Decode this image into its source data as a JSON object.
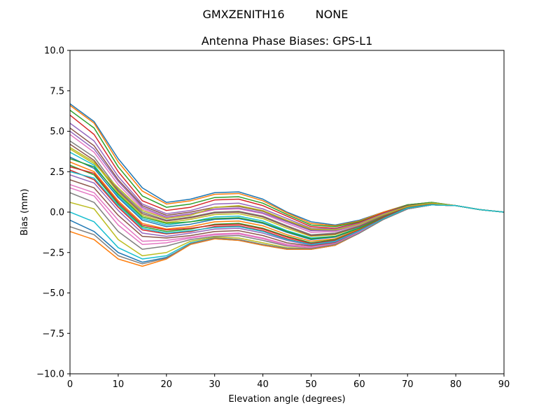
{
  "figure": {
    "suptitle_left": "GMXZENITH16",
    "suptitle_right": "NONE"
  },
  "chart_data": {
    "type": "line",
    "title": "Antenna Phase Biases: GPS-L1",
    "xlabel": "Elevation angle (degrees)",
    "ylabel": "Bias (mm)",
    "xlim": [
      0,
      90
    ],
    "ylim": [
      -10,
      10
    ],
    "xticks": [
      0,
      10,
      20,
      30,
      40,
      50,
      60,
      70,
      80,
      90
    ],
    "yticks": [
      -10,
      -7.5,
      -5,
      -2.5,
      0,
      2.5,
      5,
      7.5,
      10
    ],
    "xtick_labels": [
      "0",
      "10",
      "20",
      "30",
      "40",
      "50",
      "60",
      "70",
      "80",
      "90"
    ],
    "ytick_labels": [
      "−10.0",
      "−7.5",
      "−5.0",
      "−2.5",
      "0.0",
      "2.5",
      "5.0",
      "7.5",
      "10.0"
    ],
    "grid": false,
    "legend": "none",
    "x": [
      0,
      5,
      10,
      15,
      20,
      25,
      30,
      35,
      40,
      45,
      50,
      55,
      60,
      65,
      70,
      75,
      80,
      85,
      90
    ],
    "colors": [
      "#1f77b4",
      "#ff7f0e",
      "#2ca02c",
      "#d62728",
      "#9467bd",
      "#8c564b",
      "#e377c2",
      "#7f7f7f",
      "#bcbd22",
      "#17becf"
    ],
    "series": [
      {
        "values": [
          6.7,
          5.6,
          3.3,
          1.5,
          0.6,
          0.8,
          1.2,
          1.25,
          0.8,
          0.0,
          -0.6,
          -0.8,
          -0.5,
          0.0,
          0.45,
          0.6,
          0.4,
          0.15,
          0.0
        ]
      },
      {
        "values": [
          6.6,
          5.5,
          3.1,
          1.3,
          0.5,
          0.7,
          1.1,
          1.15,
          0.7,
          -0.05,
          -0.7,
          -0.85,
          -0.55,
          0.0,
          0.45,
          0.6,
          0.4,
          0.15,
          0.0
        ]
      },
      {
        "values": [
          6.3,
          5.2,
          2.8,
          1.0,
          0.3,
          0.5,
          0.9,
          0.95,
          0.55,
          -0.15,
          -0.8,
          -0.9,
          -0.6,
          -0.05,
          0.45,
          0.6,
          0.4,
          0.15,
          0.0
        ]
      },
      {
        "values": [
          6.0,
          4.8,
          2.5,
          0.7,
          0.1,
          0.3,
          0.75,
          0.8,
          0.4,
          -0.25,
          -0.9,
          -1.0,
          -0.65,
          -0.05,
          0.4,
          0.55,
          0.4,
          0.15,
          0.0
        ]
      },
      {
        "values": [
          5.5,
          4.4,
          2.2,
          0.5,
          -0.1,
          0.1,
          0.5,
          0.55,
          0.2,
          -0.4,
          -1.0,
          -1.05,
          -0.7,
          -0.1,
          0.4,
          0.55,
          0.4,
          0.15,
          0.0
        ]
      },
      {
        "values": [
          5.2,
          4.1,
          2.0,
          0.4,
          -0.2,
          0.0,
          0.3,
          0.35,
          0.05,
          -0.55,
          -1.1,
          -1.1,
          -0.75,
          -0.15,
          0.4,
          0.55,
          0.4,
          0.15,
          0.0
        ]
      },
      {
        "values": [
          4.8,
          3.7,
          1.7,
          0.2,
          -0.35,
          -0.15,
          0.15,
          0.2,
          -0.1,
          -0.7,
          -1.25,
          -1.2,
          -0.8,
          -0.2,
          0.35,
          0.55,
          0.4,
          0.15,
          0.0
        ]
      },
      {
        "values": [
          4.4,
          3.4,
          1.4,
          0.0,
          -0.5,
          -0.3,
          0.0,
          0.05,
          -0.25,
          -0.85,
          -1.4,
          -1.3,
          -0.85,
          -0.2,
          0.35,
          0.5,
          0.4,
          0.15,
          0.0
        ]
      },
      {
        "values": [
          4.0,
          3.1,
          1.2,
          -0.2,
          -0.65,
          -0.45,
          -0.15,
          -0.1,
          -0.4,
          -1.0,
          -1.5,
          -1.4,
          -0.9,
          -0.25,
          0.35,
          0.5,
          0.4,
          0.15,
          0.0
        ]
      },
      {
        "values": [
          3.7,
          2.9,
          1.0,
          -0.4,
          -0.8,
          -0.6,
          -0.3,
          -0.25,
          -0.55,
          -1.15,
          -1.6,
          -1.5,
          -0.95,
          -0.3,
          0.3,
          0.5,
          0.4,
          0.15,
          0.0
        ]
      },
      {
        "values": [
          3.4,
          2.7,
          0.9,
          -0.5,
          -0.9,
          -0.75,
          -0.45,
          -0.4,
          -0.7,
          -1.25,
          -1.7,
          -1.55,
          -1.0,
          -0.3,
          0.3,
          0.5,
          0.4,
          0.15,
          0.0
        ]
      },
      {
        "values": [
          3.1,
          2.5,
          0.7,
          -0.7,
          -1.05,
          -0.9,
          -0.6,
          -0.55,
          -0.85,
          -1.4,
          -1.8,
          -1.65,
          -1.05,
          -0.35,
          0.3,
          0.5,
          0.4,
          0.15,
          0.0
        ]
      },
      {
        "values": [
          2.9,
          2.3,
          0.5,
          -0.9,
          -1.2,
          -1.05,
          -0.75,
          -0.7,
          -1.0,
          -1.5,
          -1.9,
          -1.7,
          -1.1,
          -0.35,
          0.25,
          0.5,
          0.4,
          0.15,
          0.0
        ]
      },
      {
        "values": [
          2.6,
          2.0,
          0.3,
          -1.1,
          -1.35,
          -1.2,
          -0.9,
          -0.85,
          -1.15,
          -1.65,
          -2.0,
          -1.8,
          -1.15,
          -0.4,
          0.25,
          0.45,
          0.4,
          0.15,
          0.0
        ]
      },
      {
        "values": [
          2.3,
          1.8,
          0.1,
          -1.3,
          -1.5,
          -1.3,
          -1.05,
          -1.0,
          -1.3,
          -1.75,
          -2.05,
          -1.85,
          -1.2,
          -0.4,
          0.25,
          0.45,
          0.4,
          0.15,
          0.0
        ]
      },
      {
        "values": [
          2.0,
          1.5,
          -0.2,
          -1.5,
          -1.6,
          -1.45,
          -1.2,
          -1.15,
          -1.45,
          -1.9,
          -2.1,
          -1.9,
          -1.25,
          -0.45,
          0.2,
          0.45,
          0.4,
          0.15,
          0.0
        ]
      },
      {
        "values": [
          1.7,
          1.2,
          -0.5,
          -1.8,
          -1.75,
          -1.55,
          -1.35,
          -1.3,
          -1.6,
          -2.0,
          -2.15,
          -1.95,
          -1.25,
          -0.45,
          0.2,
          0.45,
          0.4,
          0.15,
          0.0
        ]
      },
      {
        "values": [
          1.2,
          0.6,
          -1.2,
          -2.3,
          -2.1,
          -1.7,
          -1.5,
          -1.45,
          -1.75,
          -2.1,
          -2.2,
          -2.0,
          -1.3,
          -0.45,
          0.2,
          0.45,
          0.4,
          0.15,
          0.0
        ]
      },
      {
        "values": [
          0.6,
          0.2,
          -1.7,
          -2.7,
          -2.5,
          -1.8,
          -1.55,
          -1.6,
          -1.9,
          -2.2,
          -2.25,
          -2.0,
          -1.3,
          -0.45,
          0.2,
          0.45,
          0.4,
          0.15,
          0.0
        ]
      },
      {
        "values": [
          0.0,
          -0.6,
          -2.2,
          -2.9,
          -2.7,
          -1.9,
          -1.6,
          -1.7,
          -2.0,
          -2.25,
          -2.3,
          -2.05,
          -1.3,
          -0.45,
          0.2,
          0.45,
          0.4,
          0.15,
          0.0
        ]
      },
      {
        "values": [
          -0.5,
          -1.2,
          -2.5,
          -3.1,
          -2.8,
          -2.0,
          -1.65,
          -1.75,
          -2.05,
          -2.3,
          -2.3,
          -2.05,
          -1.3,
          -0.45,
          0.2,
          0.45,
          0.4,
          0.15,
          0.0
        ]
      },
      {
        "values": [
          -1.2,
          -1.7,
          -2.9,
          -3.35,
          -2.9,
          -2.0,
          -1.65,
          -1.75,
          -2.05,
          -2.3,
          -2.3,
          -2.05,
          -1.3,
          -0.45,
          0.2,
          0.45,
          0.4,
          0.15,
          0.0
        ]
      },
      {
        "values": [
          3.3,
          2.8,
          1.1,
          -0.3,
          -0.7,
          -0.6,
          -0.4,
          -0.35,
          -0.65,
          -1.2,
          -1.65,
          -1.5,
          -1.0,
          -0.3,
          0.3,
          0.5,
          0.4,
          0.15,
          0.0
        ]
      },
      {
        "values": [
          2.8,
          2.4,
          0.6,
          -0.8,
          -1.1,
          -1.0,
          -0.8,
          -0.75,
          -1.05,
          -1.55,
          -1.95,
          -1.75,
          -1.1,
          -0.35,
          0.25,
          0.45,
          0.4,
          0.15,
          0.0
        ]
      },
      {
        "values": [
          5.0,
          3.9,
          1.9,
          0.3,
          -0.3,
          -0.1,
          0.2,
          0.25,
          -0.05,
          -0.6,
          -1.15,
          -1.15,
          -0.75,
          -0.15,
          0.35,
          0.55,
          0.4,
          0.15,
          0.0
        ]
      },
      {
        "values": [
          4.2,
          3.2,
          1.3,
          -0.1,
          -0.55,
          -0.35,
          -0.05,
          0.0,
          -0.3,
          -0.9,
          -1.45,
          -1.35,
          -0.9,
          -0.25,
          0.3,
          0.5,
          0.4,
          0.15,
          0.0
        ]
      },
      {
        "values": [
          1.5,
          1.0,
          -0.8,
          -2.0,
          -1.9,
          -1.6,
          -1.4,
          -1.35,
          -1.65,
          -2.05,
          -2.2,
          -1.95,
          -1.25,
          -0.45,
          0.2,
          0.45,
          0.4,
          0.15,
          0.0
        ]
      },
      {
        "values": [
          -0.9,
          -1.4,
          -2.7,
          -3.2,
          -2.85,
          -1.95,
          -1.6,
          -1.7,
          -2.0,
          -2.25,
          -2.25,
          -2.0,
          -1.3,
          -0.45,
          0.2,
          0.45,
          0.4,
          0.15,
          0.0
        ]
      },
      {
        "values": [
          3.9,
          3.0,
          1.5,
          0.1,
          -0.4,
          -0.2,
          0.3,
          0.4,
          0.1,
          -0.5,
          -1.05,
          -1.1,
          -0.75,
          -0.15,
          0.35,
          0.55,
          0.4,
          0.15,
          0.0
        ]
      },
      {
        "values": [
          2.5,
          2.1,
          0.4,
          -1.0,
          -1.3,
          -1.15,
          -0.95,
          -0.9,
          -1.2,
          -1.7,
          -2.0,
          -1.8,
          -1.15,
          -0.4,
          0.25,
          0.45,
          0.4,
          0.15,
          0.0
        ]
      }
    ]
  }
}
